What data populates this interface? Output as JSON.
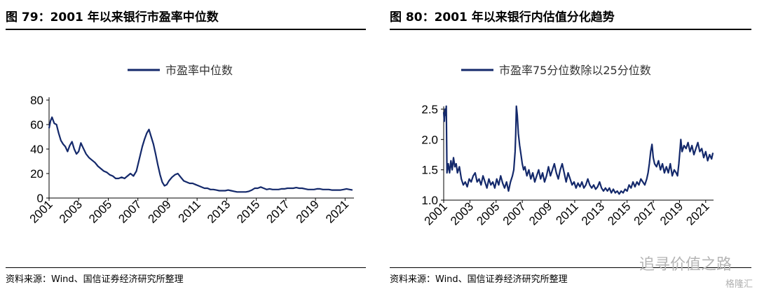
{
  "left": {
    "title": "图 79：2001 年以来银行市盈率中位数",
    "source": "资料来源：Wind、国信证券经济研究所整理"
  },
  "right": {
    "title": "图 80：2001 年以来银行内估值分化趋势",
    "source": "资料来源：Wind、国信证券经济研究所整理"
  },
  "watermark": {
    "text": "追寻价值之路",
    "logo": "格隆汇"
  },
  "colors": {
    "line": "#14296b",
    "axis": "#000000"
  },
  "chart_data": [
    {
      "type": "line",
      "title": "",
      "xlabel": "",
      "ylabel": "",
      "legend_position": "top",
      "grid": false,
      "xlim": [
        2001,
        2021.6
      ],
      "ylim": [
        0,
        80
      ],
      "yticks": [
        0,
        20,
        40,
        60,
        80
      ],
      "xticks": [
        "2001",
        "2003",
        "2005",
        "2007",
        "2009",
        "2011",
        "2013",
        "2015",
        "2017",
        "2019",
        "2021"
      ],
      "series": [
        {
          "name": "市盈率中位数",
          "points": [
            [
              2001.0,
              57
            ],
            [
              2001.1,
              63
            ],
            [
              2001.2,
              66
            ],
            [
              2001.35,
              61
            ],
            [
              2001.5,
              60
            ],
            [
              2001.65,
              53
            ],
            [
              2001.8,
              47
            ],
            [
              2001.95,
              44
            ],
            [
              2002.1,
              42
            ],
            [
              2002.25,
              38
            ],
            [
              2002.4,
              43
            ],
            [
              2002.55,
              46
            ],
            [
              2002.7,
              40
            ],
            [
              2002.85,
              36
            ],
            [
              2003.0,
              38
            ],
            [
              2003.15,
              45
            ],
            [
              2003.3,
              41
            ],
            [
              2003.5,
              36
            ],
            [
              2003.7,
              33
            ],
            [
              2003.9,
              31
            ],
            [
              2004.1,
              29
            ],
            [
              2004.3,
              26
            ],
            [
              2004.5,
              24
            ],
            [
              2004.7,
              22
            ],
            [
              2004.9,
              21
            ],
            [
              2005.1,
              19
            ],
            [
              2005.3,
              18
            ],
            [
              2005.5,
              16
            ],
            [
              2005.7,
              16
            ],
            [
              2005.9,
              17
            ],
            [
              2006.1,
              16
            ],
            [
              2006.3,
              18
            ],
            [
              2006.5,
              20
            ],
            [
              2006.7,
              18
            ],
            [
              2006.9,
              22
            ],
            [
              2007.1,
              32
            ],
            [
              2007.3,
              42
            ],
            [
              2007.45,
              48
            ],
            [
              2007.6,
              53
            ],
            [
              2007.75,
              56
            ],
            [
              2007.9,
              50
            ],
            [
              2008.05,
              44
            ],
            [
              2008.2,
              36
            ],
            [
              2008.35,
              27
            ],
            [
              2008.5,
              19
            ],
            [
              2008.65,
              13
            ],
            [
              2008.8,
              10
            ],
            [
              2008.95,
              11
            ],
            [
              2009.1,
              14
            ],
            [
              2009.3,
              17
            ],
            [
              2009.5,
              19
            ],
            [
              2009.7,
              20
            ],
            [
              2009.9,
              17
            ],
            [
              2010.1,
              14
            ],
            [
              2010.3,
              13
            ],
            [
              2010.5,
              12
            ],
            [
              2010.7,
              12
            ],
            [
              2010.9,
              11
            ],
            [
              2011.1,
              10
            ],
            [
              2011.3,
              9
            ],
            [
              2011.5,
              8
            ],
            [
              2011.7,
              8
            ],
            [
              2011.9,
              7
            ],
            [
              2012.1,
              7
            ],
            [
              2012.3,
              6.5
            ],
            [
              2012.5,
              6
            ],
            [
              2012.7,
              6
            ],
            [
              2012.9,
              6
            ],
            [
              2013.1,
              6.5
            ],
            [
              2013.3,
              6
            ],
            [
              2013.5,
              5.5
            ],
            [
              2013.7,
              5
            ],
            [
              2013.9,
              5
            ],
            [
              2014.1,
              5
            ],
            [
              2014.3,
              5
            ],
            [
              2014.5,
              5.5
            ],
            [
              2014.7,
              6.5
            ],
            [
              2014.9,
              8
            ],
            [
              2015.1,
              8
            ],
            [
              2015.3,
              9
            ],
            [
              2015.5,
              8
            ],
            [
              2015.7,
              7
            ],
            [
              2015.9,
              7.5
            ],
            [
              2016.1,
              7
            ],
            [
              2016.3,
              7
            ],
            [
              2016.5,
              7
            ],
            [
              2016.7,
              7.5
            ],
            [
              2016.9,
              7.5
            ],
            [
              2017.1,
              8
            ],
            [
              2017.3,
              8
            ],
            [
              2017.5,
              8
            ],
            [
              2017.7,
              8.5
            ],
            [
              2017.9,
              8
            ],
            [
              2018.1,
              8
            ],
            [
              2018.3,
              7.5
            ],
            [
              2018.5,
              7
            ],
            [
              2018.7,
              7
            ],
            [
              2018.9,
              7
            ],
            [
              2019.1,
              7.5
            ],
            [
              2019.3,
              7.5
            ],
            [
              2019.5,
              7
            ],
            [
              2019.7,
              7
            ],
            [
              2019.9,
              7
            ],
            [
              2020.1,
              6.5
            ],
            [
              2020.3,
              6.5
            ],
            [
              2020.5,
              6.5
            ],
            [
              2020.7,
              6.5
            ],
            [
              2020.9,
              7
            ],
            [
              2021.1,
              7.5
            ],
            [
              2021.3,
              7
            ],
            [
              2021.5,
              6.5
            ]
          ]
        }
      ]
    },
    {
      "type": "line",
      "title": "",
      "xlabel": "",
      "ylabel": "",
      "legend_position": "top",
      "grid": false,
      "xlim": [
        2001,
        2021.6
      ],
      "ylim": [
        1.0,
        2.5
      ],
      "yticks": [
        1.0,
        1.5,
        2.0,
        2.5
      ],
      "xticks": [
        "2001",
        "2003",
        "2005",
        "2007",
        "2009",
        "2011",
        "2013",
        "2015",
        "2017",
        "2019",
        "2021"
      ],
      "series": [
        {
          "name": "市盈率75分位数除以25分位数",
          "points": [
            [
              2001.0,
              2.45
            ],
            [
              2001.05,
              2.3
            ],
            [
              2001.1,
              2.5
            ],
            [
              2001.15,
              2.4
            ],
            [
              2001.2,
              2.55
            ],
            [
              2001.25,
              1.45
            ],
            [
              2001.35,
              1.6
            ],
            [
              2001.45,
              1.45
            ],
            [
              2001.55,
              1.65
            ],
            [
              2001.65,
              1.5
            ],
            [
              2001.75,
              1.7
            ],
            [
              2001.85,
              1.55
            ],
            [
              2001.95,
              1.6
            ],
            [
              2002.05,
              1.45
            ],
            [
              2002.2,
              1.55
            ],
            [
              2002.35,
              1.35
            ],
            [
              2002.5,
              1.25
            ],
            [
              2002.65,
              1.3
            ],
            [
              2002.8,
              1.22
            ],
            [
              2002.95,
              1.35
            ],
            [
              2003.1,
              1.3
            ],
            [
              2003.25,
              1.4
            ],
            [
              2003.4,
              1.45
            ],
            [
              2003.55,
              1.3
            ],
            [
              2003.7,
              1.35
            ],
            [
              2003.85,
              1.25
            ],
            [
              2004.0,
              1.4
            ],
            [
              2004.15,
              1.3
            ],
            [
              2004.3,
              1.2
            ],
            [
              2004.45,
              1.35
            ],
            [
              2004.6,
              1.25
            ],
            [
              2004.75,
              1.3
            ],
            [
              2004.9,
              1.2
            ],
            [
              2005.05,
              1.35
            ],
            [
              2005.2,
              1.25
            ],
            [
              2005.35,
              1.4
            ],
            [
              2005.5,
              1.28
            ],
            [
              2005.65,
              1.2
            ],
            [
              2005.8,
              1.3
            ],
            [
              2005.95,
              1.15
            ],
            [
              2006.1,
              1.3
            ],
            [
              2006.25,
              1.4
            ],
            [
              2006.35,
              1.5
            ],
            [
              2006.45,
              1.8
            ],
            [
              2006.5,
              2.1
            ],
            [
              2006.55,
              2.55
            ],
            [
              2006.62,
              2.4
            ],
            [
              2006.7,
              2.1
            ],
            [
              2006.8,
              1.9
            ],
            [
              2006.9,
              1.75
            ],
            [
              2007.0,
              1.6
            ],
            [
              2007.1,
              1.5
            ],
            [
              2007.2,
              1.55
            ],
            [
              2007.35,
              1.4
            ],
            [
              2007.5,
              1.5
            ],
            [
              2007.65,
              1.35
            ],
            [
              2007.8,
              1.45
            ],
            [
              2007.95,
              1.3
            ],
            [
              2008.1,
              1.4
            ],
            [
              2008.25,
              1.5
            ],
            [
              2008.4,
              1.35
            ],
            [
              2008.55,
              1.45
            ],
            [
              2008.7,
              1.3
            ],
            [
              2008.85,
              1.4
            ],
            [
              2009.0,
              1.55
            ],
            [
              2009.15,
              1.4
            ],
            [
              2009.3,
              1.5
            ],
            [
              2009.45,
              1.6
            ],
            [
              2009.6,
              1.45
            ],
            [
              2009.75,
              1.35
            ],
            [
              2009.9,
              1.5
            ],
            [
              2010.05,
              1.6
            ],
            [
              2010.2,
              1.45
            ],
            [
              2010.35,
              1.3
            ],
            [
              2010.5,
              1.45
            ],
            [
              2010.65,
              1.35
            ],
            [
              2010.8,
              1.25
            ],
            [
              2010.95,
              1.3
            ],
            [
              2011.1,
              1.2
            ],
            [
              2011.25,
              1.28
            ],
            [
              2011.4,
              1.22
            ],
            [
              2011.55,
              1.3
            ],
            [
              2011.7,
              1.2
            ],
            [
              2011.85,
              1.25
            ],
            [
              2012.0,
              1.35
            ],
            [
              2012.15,
              1.25
            ],
            [
              2012.3,
              1.2
            ],
            [
              2012.45,
              1.25
            ],
            [
              2012.6,
              1.18
            ],
            [
              2012.75,
              1.22
            ],
            [
              2012.9,
              1.3
            ],
            [
              2013.05,
              1.2
            ],
            [
              2013.2,
              1.15
            ],
            [
              2013.35,
              1.2
            ],
            [
              2013.5,
              1.15
            ],
            [
              2013.65,
              1.2
            ],
            [
              2013.8,
              1.12
            ],
            [
              2013.95,
              1.18
            ],
            [
              2014.1,
              1.12
            ],
            [
              2014.25,
              1.15
            ],
            [
              2014.4,
              1.1
            ],
            [
              2014.55,
              1.15
            ],
            [
              2014.7,
              1.12
            ],
            [
              2014.85,
              1.18
            ],
            [
              2015.0,
              1.15
            ],
            [
              2015.15,
              1.25
            ],
            [
              2015.3,
              1.2
            ],
            [
              2015.45,
              1.3
            ],
            [
              2015.6,
              1.22
            ],
            [
              2015.75,
              1.3
            ],
            [
              2015.9,
              1.25
            ],
            [
              2016.05,
              1.35
            ],
            [
              2016.2,
              1.3
            ],
            [
              2016.35,
              1.25
            ],
            [
              2016.5,
              1.35
            ],
            [
              2016.6,
              1.45
            ],
            [
              2016.7,
              1.6
            ],
            [
              2016.8,
              1.8
            ],
            [
              2016.9,
              1.92
            ],
            [
              2017.0,
              1.7
            ],
            [
              2017.1,
              1.6
            ],
            [
              2017.25,
              1.55
            ],
            [
              2017.4,
              1.65
            ],
            [
              2017.55,
              1.5
            ],
            [
              2017.7,
              1.6
            ],
            [
              2017.85,
              1.45
            ],
            [
              2018.0,
              1.55
            ],
            [
              2018.15,
              1.45
            ],
            [
              2018.3,
              1.6
            ],
            [
              2018.45,
              1.4
            ],
            [
              2018.6,
              1.5
            ],
            [
              2018.75,
              1.45
            ],
            [
              2018.85,
              1.4
            ],
            [
              2018.95,
              1.6
            ],
            [
              2019.05,
              1.85
            ],
            [
              2019.1,
              2.0
            ],
            [
              2019.2,
              1.8
            ],
            [
              2019.35,
              1.9
            ],
            [
              2019.5,
              1.85
            ],
            [
              2019.65,
              1.95
            ],
            [
              2019.8,
              1.8
            ],
            [
              2019.95,
              1.9
            ],
            [
              2020.1,
              1.75
            ],
            [
              2020.25,
              1.85
            ],
            [
              2020.4,
              1.95
            ],
            [
              2020.55,
              1.8
            ],
            [
              2020.7,
              1.85
            ],
            [
              2020.85,
              1.7
            ],
            [
              2021.0,
              1.8
            ],
            [
              2021.15,
              1.65
            ],
            [
              2021.3,
              1.75
            ],
            [
              2021.45,
              1.68
            ],
            [
              2021.55,
              1.78
            ]
          ]
        }
      ]
    }
  ]
}
